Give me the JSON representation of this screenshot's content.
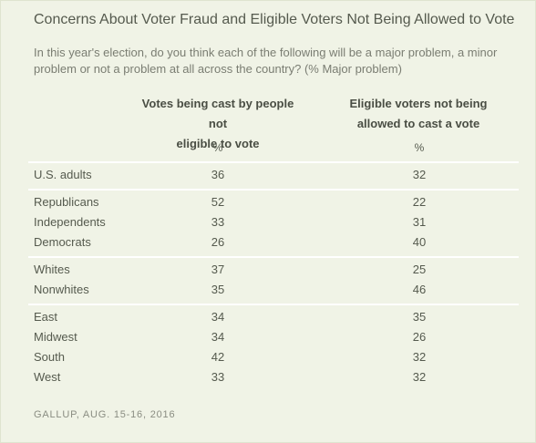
{
  "title": "Concerns About Voter Fraud and Eligible Voters Not Being Allowed to Vote",
  "subtitle": "In this year's election, do you think each of the following will be a major problem, a minor problem or not a problem at all across the country? (% Major problem)",
  "footer": "GALLUP, AUG. 15-16, 2016",
  "chart_data": {
    "type": "table",
    "title": "Concerns About Voter Fraud and Eligible Voters Not Being Allowed to Vote",
    "columns": [
      {
        "header_line1": "Votes being cast by people not",
        "header_line2": "eligible to vote",
        "unit": "%"
      },
      {
        "header_line1": "Eligible voters not being",
        "header_line2": "allowed to cast a vote",
        "unit": "%"
      }
    ],
    "rows": [
      {
        "label": "U.S. adults",
        "values": [
          "36",
          "32"
        ]
      },
      {
        "label": "Republicans",
        "values": [
          "52",
          "22"
        ]
      },
      {
        "label": "Independents",
        "values": [
          "33",
          "31"
        ]
      },
      {
        "label": "Democrats",
        "values": [
          "26",
          "40"
        ]
      },
      {
        "label": "Whites",
        "values": [
          "37",
          "25"
        ]
      },
      {
        "label": "Nonwhites",
        "values": [
          "35",
          "46"
        ]
      },
      {
        "label": "East",
        "values": [
          "34",
          "35"
        ]
      },
      {
        "label": "Midwest",
        "values": [
          "34",
          "26"
        ]
      },
      {
        "label": "South",
        "values": [
          "42",
          "32"
        ]
      },
      {
        "label": "West",
        "values": [
          "33",
          "32"
        ]
      }
    ]
  }
}
